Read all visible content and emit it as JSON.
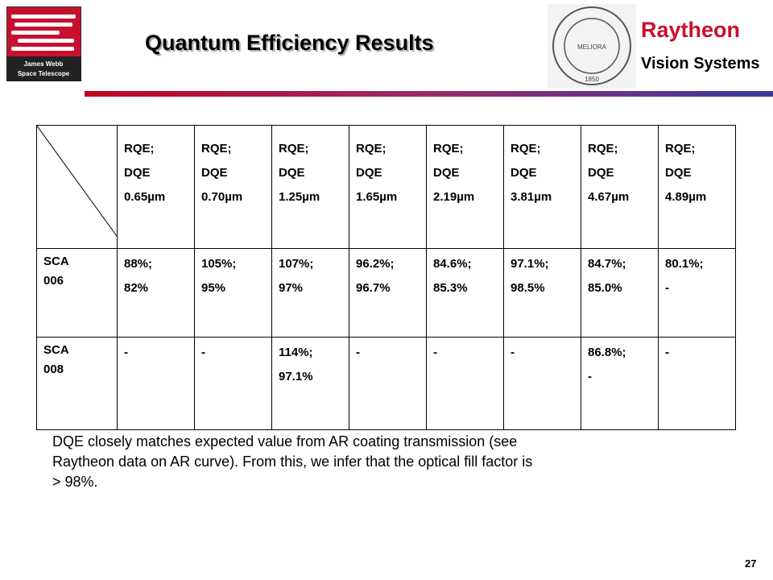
{
  "header": {
    "title": "Quantum Efficiency Results",
    "logo_lines": [
      "James Webb",
      "Space Telescope"
    ],
    "seal_motto": "MELIORA",
    "seal_year": "1850",
    "company": "Raytheon",
    "division": "Vision Systems"
  },
  "table": {
    "columns": [
      [
        "RQE;",
        "DQE",
        "0.65µm"
      ],
      [
        "RQE;",
        "DQE",
        "0.70µm"
      ],
      [
        "RQE;",
        "DQE",
        "1.25µm"
      ],
      [
        "RQE;",
        "DQE",
        "1.65µm"
      ],
      [
        "RQE;",
        "DQE",
        "2.19µm"
      ],
      [
        "RQE;",
        "DQE",
        "3.81µm"
      ],
      [
        "RQE;",
        "DQE",
        "4.67µm"
      ],
      [
        "RQE;",
        "DQE",
        "4.89µm"
      ]
    ],
    "rows": [
      {
        "label": [
          "SCA",
          "006"
        ],
        "cells": [
          [
            "88%;",
            "82%"
          ],
          [
            "105%;",
            "95%"
          ],
          [
            "107%;",
            "97%"
          ],
          [
            "96.2%;",
            "96.7%"
          ],
          [
            "84.6%;",
            "85.3%"
          ],
          [
            "97.1%;",
            "98.5%"
          ],
          [
            "84.7%;",
            "85.0%"
          ],
          [
            "80.1%;",
            "-"
          ]
        ]
      },
      {
        "label": [
          "SCA",
          "008"
        ],
        "cells": [
          [
            "-"
          ],
          [
            "-"
          ],
          [
            "114%;",
            "97.1%"
          ],
          [
            "-"
          ],
          [
            "-"
          ],
          [
            "-"
          ],
          [
            "86.8%;",
            "-"
          ],
          [
            "-"
          ]
        ]
      }
    ]
  },
  "summary": [
    "DQE closely matches expected value from AR coating transmission (see",
    "Raytheon data on AR curve).  From this, we infer that the optical fill factor is",
    "> 98%."
  ],
  "footer": {
    "page": "27"
  }
}
